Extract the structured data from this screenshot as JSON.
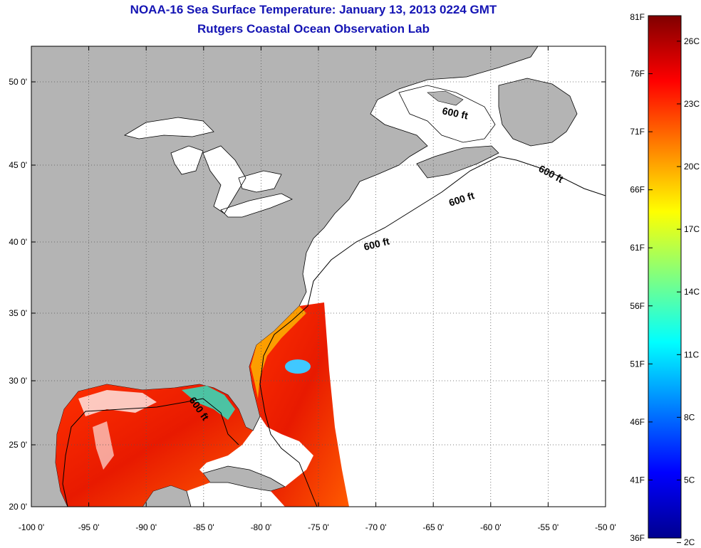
{
  "title": {
    "line1": "NOAA-16 Sea Surface Temperature:  January 13, 2013 0224 GMT",
    "line2": "Rutgers Coastal Ocean Observation Lab"
  },
  "map": {
    "lon_range": [
      -100,
      -50
    ],
    "lat_range": [
      20,
      52.5
    ],
    "x_ticks": [
      "-100 0'",
      "-95 0'",
      "-90 0'",
      "-85 0'",
      "-80 0'",
      "-75 0'",
      "-70 0'",
      "-65 0'",
      "-60 0'",
      "-55 0'",
      "-50 0'"
    ],
    "y_ticks": [
      "20 0'",
      "25 0'",
      "30 0'",
      "35 0'",
      "40 0'",
      "45 0'",
      "50 0'"
    ],
    "contour_label": "600 ft",
    "contour_label_count": 5,
    "land_color": "#b4b4b4",
    "ocean_nodata_color": "#ffffff"
  },
  "colorbar": {
    "fahrenheit_labels": [
      "81F",
      "76F",
      "71F",
      "66F",
      "61F",
      "56F",
      "51F",
      "46F",
      "41F",
      "36F"
    ],
    "celsius_labels": [
      "26C",
      "23C",
      "20C",
      "17C",
      "14C",
      "11C",
      "8C",
      "5C",
      "2C"
    ],
    "range_f": [
      36,
      81
    ],
    "range_c": [
      2,
      26
    ],
    "colors": [
      "#00008f",
      "#0000ff",
      "#0080ff",
      "#00ffff",
      "#80ff80",
      "#ffff00",
      "#ff8000",
      "#ff0000",
      "#800000"
    ]
  }
}
